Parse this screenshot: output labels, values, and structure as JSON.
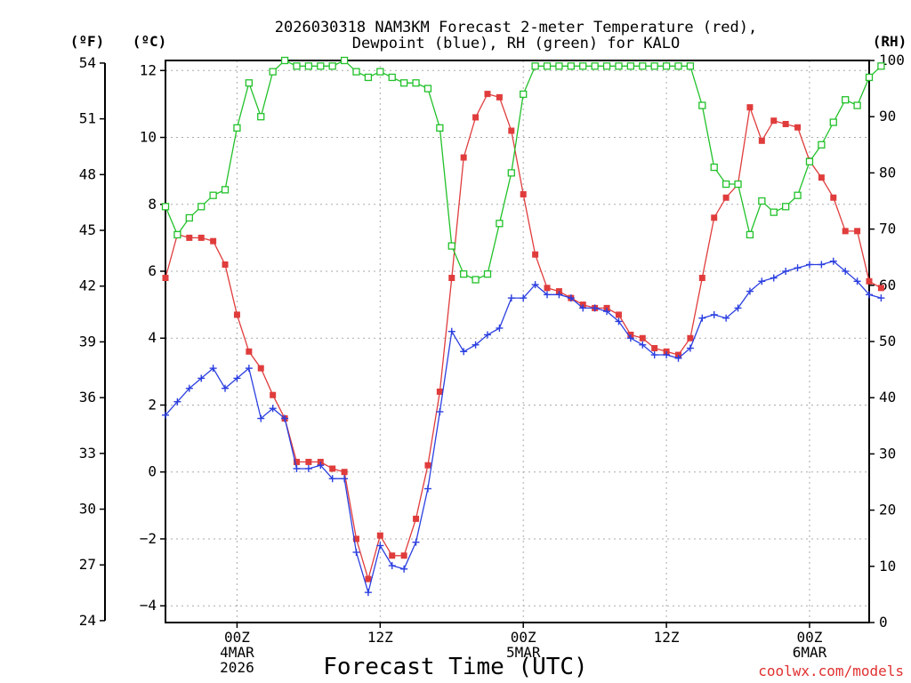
{
  "chart_data": {
    "type": "line",
    "title_line1": "2026030318 NAM3KM Forecast 2-meter Temperature (red),",
    "title_line2": "Dewpoint (blue), RH (green) for KALO",
    "xlabel": "Forecast Time (UTC)",
    "credit": "coolwx.com/models",
    "unit_left_f": "(ºF)",
    "unit_left_c": "(ºC)",
    "unit_right": "(RH)",
    "x_range_hours": [
      0,
      59
    ],
    "ylim_c": [
      -4.5,
      12.3
    ],
    "ylim_rh": [
      0,
      100
    ],
    "f_ticks": [
      "54",
      "51",
      "48",
      "45",
      "42",
      "39",
      "36",
      "33",
      "30",
      "27",
      "24"
    ],
    "c_ticks": [
      "12",
      "10",
      "8",
      "6",
      "4",
      "2",
      "0",
      "−2",
      "−4"
    ],
    "rh_ticks": [
      "100",
      "90",
      "80",
      "70",
      "60",
      "50",
      "40",
      "30",
      "20",
      "10",
      "0"
    ],
    "x_ticks": [
      {
        "hour": 6,
        "lines": [
          "00Z",
          "4MAR",
          "2026"
        ]
      },
      {
        "hour": 18,
        "lines": [
          "12Z"
        ]
      },
      {
        "hour": 30,
        "lines": [
          "00Z",
          "5MAR"
        ]
      },
      {
        "hour": 42,
        "lines": [
          "12Z"
        ]
      },
      {
        "hour": 54,
        "lines": [
          "00Z",
          "6MAR"
        ]
      }
    ],
    "series": [
      {
        "name": "2-meter Temperature (C)",
        "color": "#e03c3c",
        "values": [
          5.8,
          7.1,
          7.0,
          7.0,
          6.9,
          6.2,
          4.7,
          3.6,
          3.1,
          2.3,
          1.6,
          0.3,
          0.3,
          0.3,
          0.1,
          0.0,
          -2.0,
          -3.2,
          -1.9,
          -2.5,
          -2.5,
          -1.4,
          0.2,
          2.4,
          5.8,
          9.4,
          10.6,
          11.3,
          11.2,
          10.2,
          8.3,
          6.5,
          5.5,
          5.4,
          5.2,
          5.0,
          4.9,
          4.9,
          4.7,
          4.1,
          4.0,
          3.7,
          3.6,
          3.5,
          4.0,
          5.8,
          7.6,
          8.2,
          8.6,
          10.9,
          9.9,
          10.5,
          10.4,
          10.3,
          9.3,
          8.8,
          8.2,
          7.2,
          7.2,
          5.7,
          5.5
        ]
      },
      {
        "name": "Dewpoint (C)",
        "color": "#2b3fe0",
        "values": [
          1.7,
          2.1,
          2.5,
          2.8,
          3.1,
          2.5,
          2.8,
          3.1,
          1.6,
          1.9,
          1.6,
          0.1,
          0.1,
          0.2,
          -0.2,
          -0.2,
          -2.4,
          -3.6,
          -2.2,
          -2.8,
          -2.9,
          -2.1,
          -0.5,
          1.8,
          4.2,
          3.6,
          3.8,
          4.1,
          4.3,
          5.2,
          5.2,
          5.6,
          5.3,
          5.3,
          5.2,
          4.9,
          4.9,
          4.8,
          4.5,
          4.0,
          3.8,
          3.5,
          3.5,
          3.4,
          3.7,
          4.6,
          4.7,
          4.6,
          4.9,
          5.4,
          5.7,
          5.8,
          6.0,
          6.1,
          6.2,
          6.2,
          6.3,
          6.0,
          5.7,
          5.3,
          5.2
        ]
      },
      {
        "name": "RH (%)",
        "color": "#22c12a",
        "values": [
          74,
          69,
          72,
          74,
          76,
          77,
          88,
          96,
          90,
          98,
          100,
          99,
          99,
          99,
          99,
          100,
          98,
          97,
          98,
          97,
          96,
          96,
          95,
          88,
          67,
          62,
          61,
          62,
          71,
          80,
          94,
          99,
          99,
          99,
          99,
          99,
          99,
          99,
          99,
          99,
          99,
          99,
          99,
          99,
          99,
          92,
          81,
          78,
          78,
          69,
          75,
          73,
          74,
          76,
          82,
          85,
          89,
          93,
          92,
          97,
          99
        ]
      }
    ]
  }
}
